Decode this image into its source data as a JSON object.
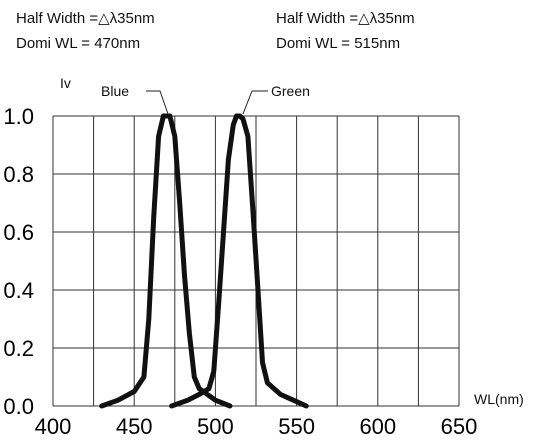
{
  "header": {
    "blue_half_width": "Half Width =△λ35nm",
    "blue_domi_wl": "Domi WL = 470nm",
    "green_half_width": "Half Width =△λ35nm",
    "green_domi_wl": "Domi WL = 515nm"
  },
  "chart_data": {
    "type": "line",
    "ylabel": "Iv",
    "xlabel": "WL(nm)",
    "xlim": [
      400,
      650
    ],
    "ylim": [
      0.0,
      1.0
    ],
    "x_ticks": [
      "400",
      "450",
      "500",
      "550",
      "600",
      "650"
    ],
    "y_ticks": [
      "0.0",
      "0.2",
      "0.4",
      "0.6",
      "0.8",
      "1.0"
    ],
    "grid": true,
    "series": [
      {
        "name": "Blue",
        "color": "#111111",
        "x": [
          430,
          440,
          450,
          456,
          459,
          462,
          465,
          468,
          470,
          472,
          475,
          478,
          481,
          484,
          487,
          490,
          495,
          500,
          509
        ],
        "y": [
          0.0,
          0.02,
          0.05,
          0.1,
          0.3,
          0.65,
          0.93,
          1.0,
          1.0,
          1.0,
          0.93,
          0.7,
          0.45,
          0.25,
          0.1,
          0.06,
          0.04,
          0.02,
          0.0
        ]
      },
      {
        "name": "Green",
        "color": "#111111",
        "x": [
          473,
          483,
          490,
          496,
          499,
          502,
          505,
          508,
          511,
          513,
          515,
          517,
          520,
          523,
          526,
          529,
          532,
          540,
          548,
          556
        ],
        "y": [
          0.0,
          0.02,
          0.04,
          0.06,
          0.12,
          0.35,
          0.6,
          0.85,
          0.97,
          1.0,
          1.0,
          0.99,
          0.93,
          0.68,
          0.42,
          0.15,
          0.08,
          0.04,
          0.02,
          0.0
        ]
      }
    ]
  }
}
